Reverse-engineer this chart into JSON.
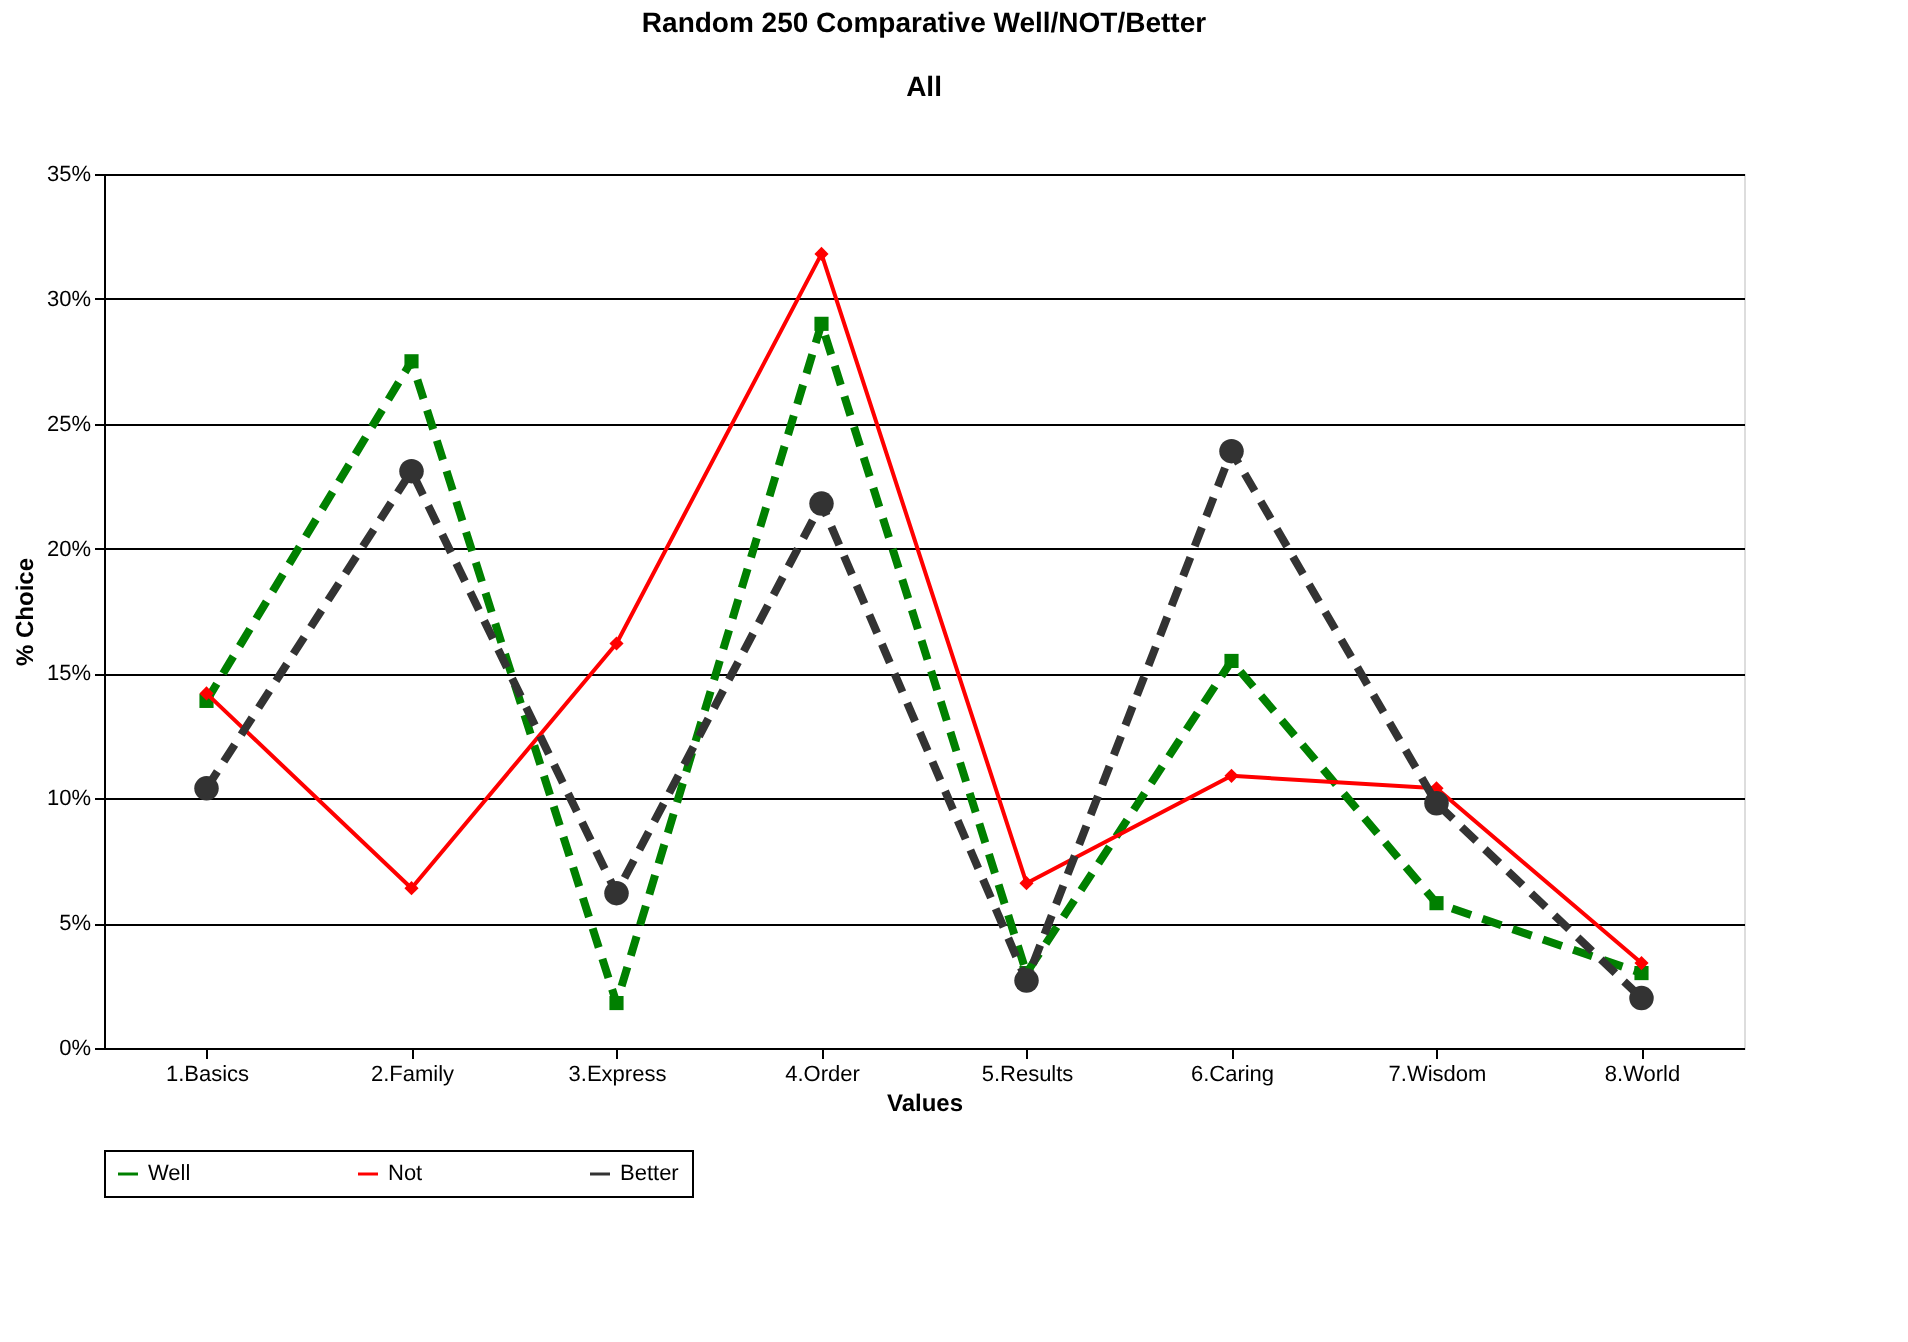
{
  "chart_data": {
    "type": "line",
    "title": "Random 250 Comparative Well/NOT/Better",
    "subtitle": "All",
    "xlabel": "Values",
    "ylabel": "% Choice",
    "categories": [
      "1.Basics",
      "2.Family",
      "3.Express",
      "4.Order",
      "5.Results",
      "6.Caring",
      "7.Wisdom",
      "8.World"
    ],
    "series": [
      {
        "name": "Well",
        "color": "#008000",
        "marker": "square",
        "line_style": "dashed",
        "values": [
          13.9,
          27.5,
          1.8,
          29.0,
          3.0,
          15.5,
          5.8,
          3.0
        ]
      },
      {
        "name": "Not",
        "color": "#ff0000",
        "marker": "diamond",
        "line_style": "solid",
        "values": [
          14.2,
          6.4,
          16.2,
          31.8,
          6.6,
          10.9,
          10.4,
          3.4
        ]
      },
      {
        "name": "Better",
        "color": "#333333",
        "marker": "circle",
        "line_style": "dashed",
        "values": [
          10.4,
          23.1,
          6.2,
          21.8,
          2.7,
          23.9,
          9.8,
          2.0
        ]
      }
    ],
    "ylim": [
      0,
      35
    ],
    "yticks": [
      {
        "value": 0,
        "label": "0%"
      },
      {
        "value": 5,
        "label": "5%"
      },
      {
        "value": 10,
        "label": "10%"
      },
      {
        "value": 15,
        "label": "15%"
      },
      {
        "value": 20,
        "label": "20%"
      },
      {
        "value": 25,
        "label": "25%"
      },
      {
        "value": 30,
        "label": "30%"
      },
      {
        "value": 35,
        "label": "35%"
      }
    ],
    "grid": "y",
    "legend": "bottom"
  }
}
